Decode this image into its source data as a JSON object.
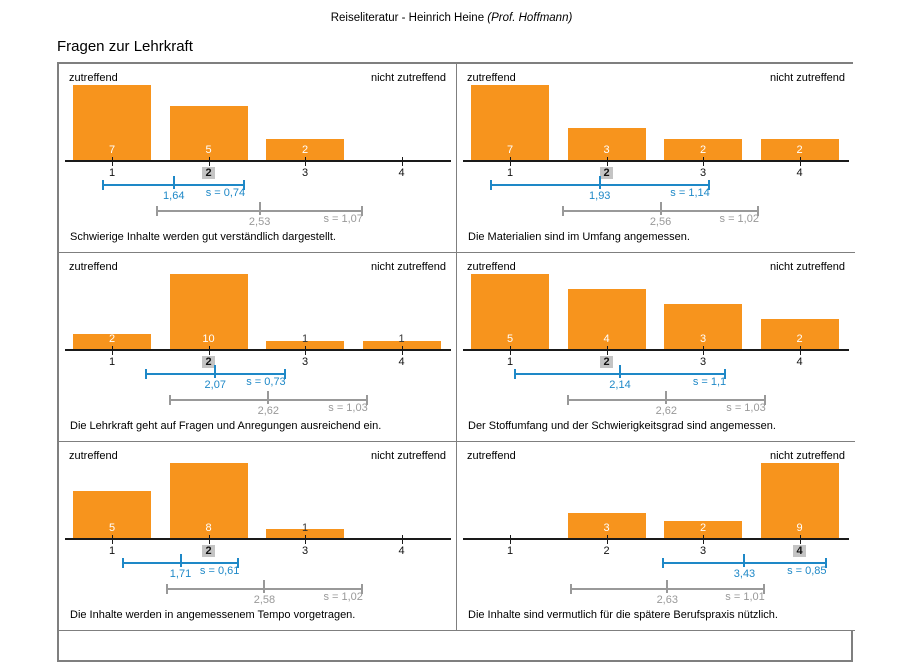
{
  "page": {
    "title_normal": "Reiseliteratur - Heinrich Heine ",
    "title_italic": "(Prof. Hoffmann)",
    "section_heading": "Fragen zur Lehrkraft"
  },
  "scale": {
    "left_label": "zutreffend",
    "right_label": "nicht zutreffend",
    "tick_labels": [
      "1",
      "2",
      "3",
      "4"
    ]
  },
  "colors": {
    "bar_orange": "#F7941D",
    "mean_line_blue": "#1E88C7",
    "compare_line_gray": "#999999",
    "median_highlight_bg": "#c4c4c4",
    "axis_black": "#1a1a1a",
    "border_gray": "#7f7f7f"
  },
  "chart_data": [
    {
      "type": "bar",
      "question": "Schwierige Inhalte werden gut verständlich dargestellt.",
      "categories": [
        1,
        2,
        3,
        4
      ],
      "values": [
        7,
        5,
        2,
        0
      ],
      "median": 2,
      "mean": 1.64,
      "mean_label": "1,64",
      "sd": 0.74,
      "sd_label": "s = 0,74",
      "compare_mean": 2.53,
      "compare_mean_label": "2,53",
      "compare_sd": 1.07,
      "compare_sd_label": "s = 1,07"
    },
    {
      "type": "bar",
      "question": "Die Materialien sind im Umfang angemessen.",
      "categories": [
        1,
        2,
        3,
        4
      ],
      "values": [
        7,
        3,
        2,
        2
      ],
      "median": 2,
      "mean": 1.93,
      "mean_label": "1,93",
      "sd": 1.14,
      "sd_label": "s = 1,14",
      "compare_mean": 2.56,
      "compare_mean_label": "2,56",
      "compare_sd": 1.02,
      "compare_sd_label": "s = 1,02"
    },
    {
      "type": "bar",
      "question": "Die Lehrkraft geht auf Fragen und Anregungen ausreichend ein.",
      "categories": [
        1,
        2,
        3,
        4
      ],
      "values": [
        2,
        10,
        1,
        1
      ],
      "median": 2,
      "mean": 2.07,
      "mean_label": "2,07",
      "sd": 0.73,
      "sd_label": "s = 0,73",
      "compare_mean": 2.62,
      "compare_mean_label": "2,62",
      "compare_sd": 1.03,
      "compare_sd_label": "s = 1,03"
    },
    {
      "type": "bar",
      "question": "Der Stoffumfang und der Schwierigkeitsgrad sind angemessen.",
      "categories": [
        1,
        2,
        3,
        4
      ],
      "values": [
        5,
        4,
        3,
        2
      ],
      "median": 2,
      "mean": 2.14,
      "mean_label": "2,14",
      "sd": 1.1,
      "sd_label": "s = 1,1",
      "compare_mean": 2.62,
      "compare_mean_label": "2,62",
      "compare_sd": 1.03,
      "compare_sd_label": "s = 1,03"
    },
    {
      "type": "bar",
      "question": "Die Inhalte werden in angemessenem Tempo vorgetragen.",
      "categories": [
        1,
        2,
        3,
        4
      ],
      "values": [
        5,
        8,
        1,
        0
      ],
      "median": 2,
      "mean": 1.71,
      "mean_label": "1,71",
      "sd": 0.61,
      "sd_label": "s = 0,61",
      "compare_mean": 2.58,
      "compare_mean_label": "2,58",
      "compare_sd": 1.02,
      "compare_sd_label": "s = 1,02"
    },
    {
      "type": "bar",
      "question": "Die Inhalte sind vermutlich für die spätere Berufspraxis nützlich.",
      "categories": [
        1,
        2,
        3,
        4
      ],
      "values": [
        0,
        3,
        2,
        9
      ],
      "median": 4,
      "mean": 3.43,
      "mean_label": "3,43",
      "sd": 0.85,
      "sd_label": "s = 0,85",
      "compare_mean": 2.63,
      "compare_mean_label": "2,63",
      "compare_sd": 1.01,
      "compare_sd_label": "s = 1,01"
    }
  ]
}
